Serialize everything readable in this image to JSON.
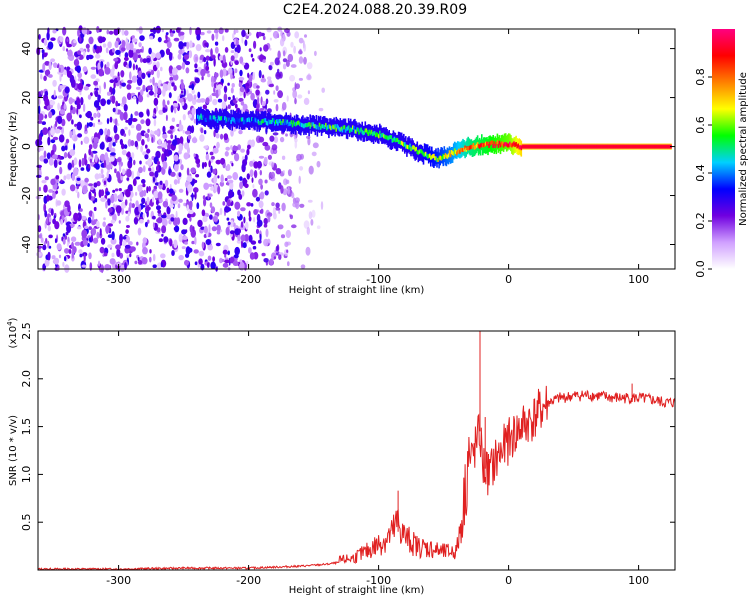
{
  "title": "C2E4.2024.088.20.39.R09",
  "chart_data": [
    {
      "type": "heatmap",
      "xlabel": "Height of straight line (km)",
      "ylabel": "Frequency (Hz)",
      "xlim": [
        -362,
        128
      ],
      "ylim": [
        -50,
        48
      ],
      "xticks": [
        -300,
        -200,
        -100,
        0,
        100
      ],
      "yticks": [
        -40,
        -20,
        0,
        20,
        40
      ],
      "colorbar": {
        "label": "Normalized spectral amplitude",
        "range": [
          0.0,
          1.0
        ],
        "ticks": [
          0.0,
          0.2,
          0.4,
          0.6,
          0.8
        ],
        "colormap": [
          "#ffffff",
          "#d0a0ff",
          "#7000e0",
          "#0000ff",
          "#00d0ff",
          "#00ff00",
          "#ffff00",
          "#ff8000",
          "#ff0000",
          "#ff0080"
        ]
      },
      "signal_track": [
        {
          "x": -240,
          "y": 12,
          "amp": 0.35
        },
        {
          "x": -220,
          "y": 11,
          "amp": 0.4
        },
        {
          "x": -200,
          "y": 10.5,
          "amp": 0.4
        },
        {
          "x": -180,
          "y": 10,
          "amp": 0.45
        },
        {
          "x": -160,
          "y": 9,
          "amp": 0.45
        },
        {
          "x": -140,
          "y": 8,
          "amp": 0.5
        },
        {
          "x": -120,
          "y": 7,
          "amp": 0.5
        },
        {
          "x": -100,
          "y": 5,
          "amp": 0.5
        },
        {
          "x": -85,
          "y": 2,
          "amp": 0.55
        },
        {
          "x": -70,
          "y": -2,
          "amp": 0.55
        },
        {
          "x": -55,
          "y": -5,
          "amp": 0.6
        },
        {
          "x": -45,
          "y": -3,
          "amp": 0.65
        },
        {
          "x": -30,
          "y": 0,
          "amp": 0.75
        },
        {
          "x": -15,
          "y": 1,
          "amp": 0.8
        },
        {
          "x": 0,
          "y": 1,
          "amp": 0.85
        },
        {
          "x": 10,
          "y": 0,
          "amp": 0.95
        },
        {
          "x": 50,
          "y": 0,
          "amp": 0.97
        },
        {
          "x": 100,
          "y": 0,
          "amp": 0.95
        },
        {
          "x": 125,
          "y": 0,
          "amp": 0.95
        }
      ],
      "noise_region": {
        "x_from": -362,
        "x_to": -195,
        "fade_to": -140,
        "amp": 0.25
      }
    },
    {
      "type": "line",
      "xlabel": "Height of straight line (km)",
      "ylabel": "SNR (10 * v/v)",
      "y_multiplier": "(x10",
      "y_multiplier_exp": "4",
      "y_multiplier_close": ")",
      "xlim": [
        -362,
        128
      ],
      "ylim": [
        0,
        2.5
      ],
      "xticks": [
        -300,
        -200,
        -100,
        0,
        100
      ],
      "yticks": [
        0.5,
        1.0,
        1.5,
        2.0,
        2.5
      ],
      "ytick_labels": [
        "0.5",
        "1.0",
        "1.5",
        "2.0",
        "2.5"
      ],
      "color": "#e02020",
      "x": [
        -362,
        -300,
        -250,
        -200,
        -180,
        -160,
        -140,
        -120,
        -110,
        -100,
        -90,
        -85,
        -80,
        -70,
        -60,
        -50,
        -40,
        -35,
        -30,
        -25,
        -22,
        -20,
        -15,
        -10,
        -5,
        0,
        10,
        20,
        30,
        40,
        50,
        60,
        70,
        80,
        90,
        100,
        110,
        120,
        128
      ],
      "values": [
        0.01,
        0.01,
        0.02,
        0.02,
        0.03,
        0.04,
        0.06,
        0.1,
        0.15,
        0.22,
        0.3,
        0.4,
        0.28,
        0.2,
        0.18,
        0.15,
        0.16,
        0.5,
        1.1,
        1.3,
        1.45,
        1.1,
        1.0,
        1.15,
        1.25,
        1.35,
        1.5,
        1.6,
        1.75,
        1.8,
        1.82,
        1.83,
        1.82,
        1.8,
        1.8,
        1.8,
        1.78,
        1.75,
        1.75
      ],
      "spikes": [
        {
          "x": -85,
          "y": 0.83
        },
        {
          "x": -22,
          "y": 2.5
        },
        {
          "x": -18,
          "y": 1.6
        },
        {
          "x": 95,
          "y": 1.95
        }
      ]
    }
  ]
}
